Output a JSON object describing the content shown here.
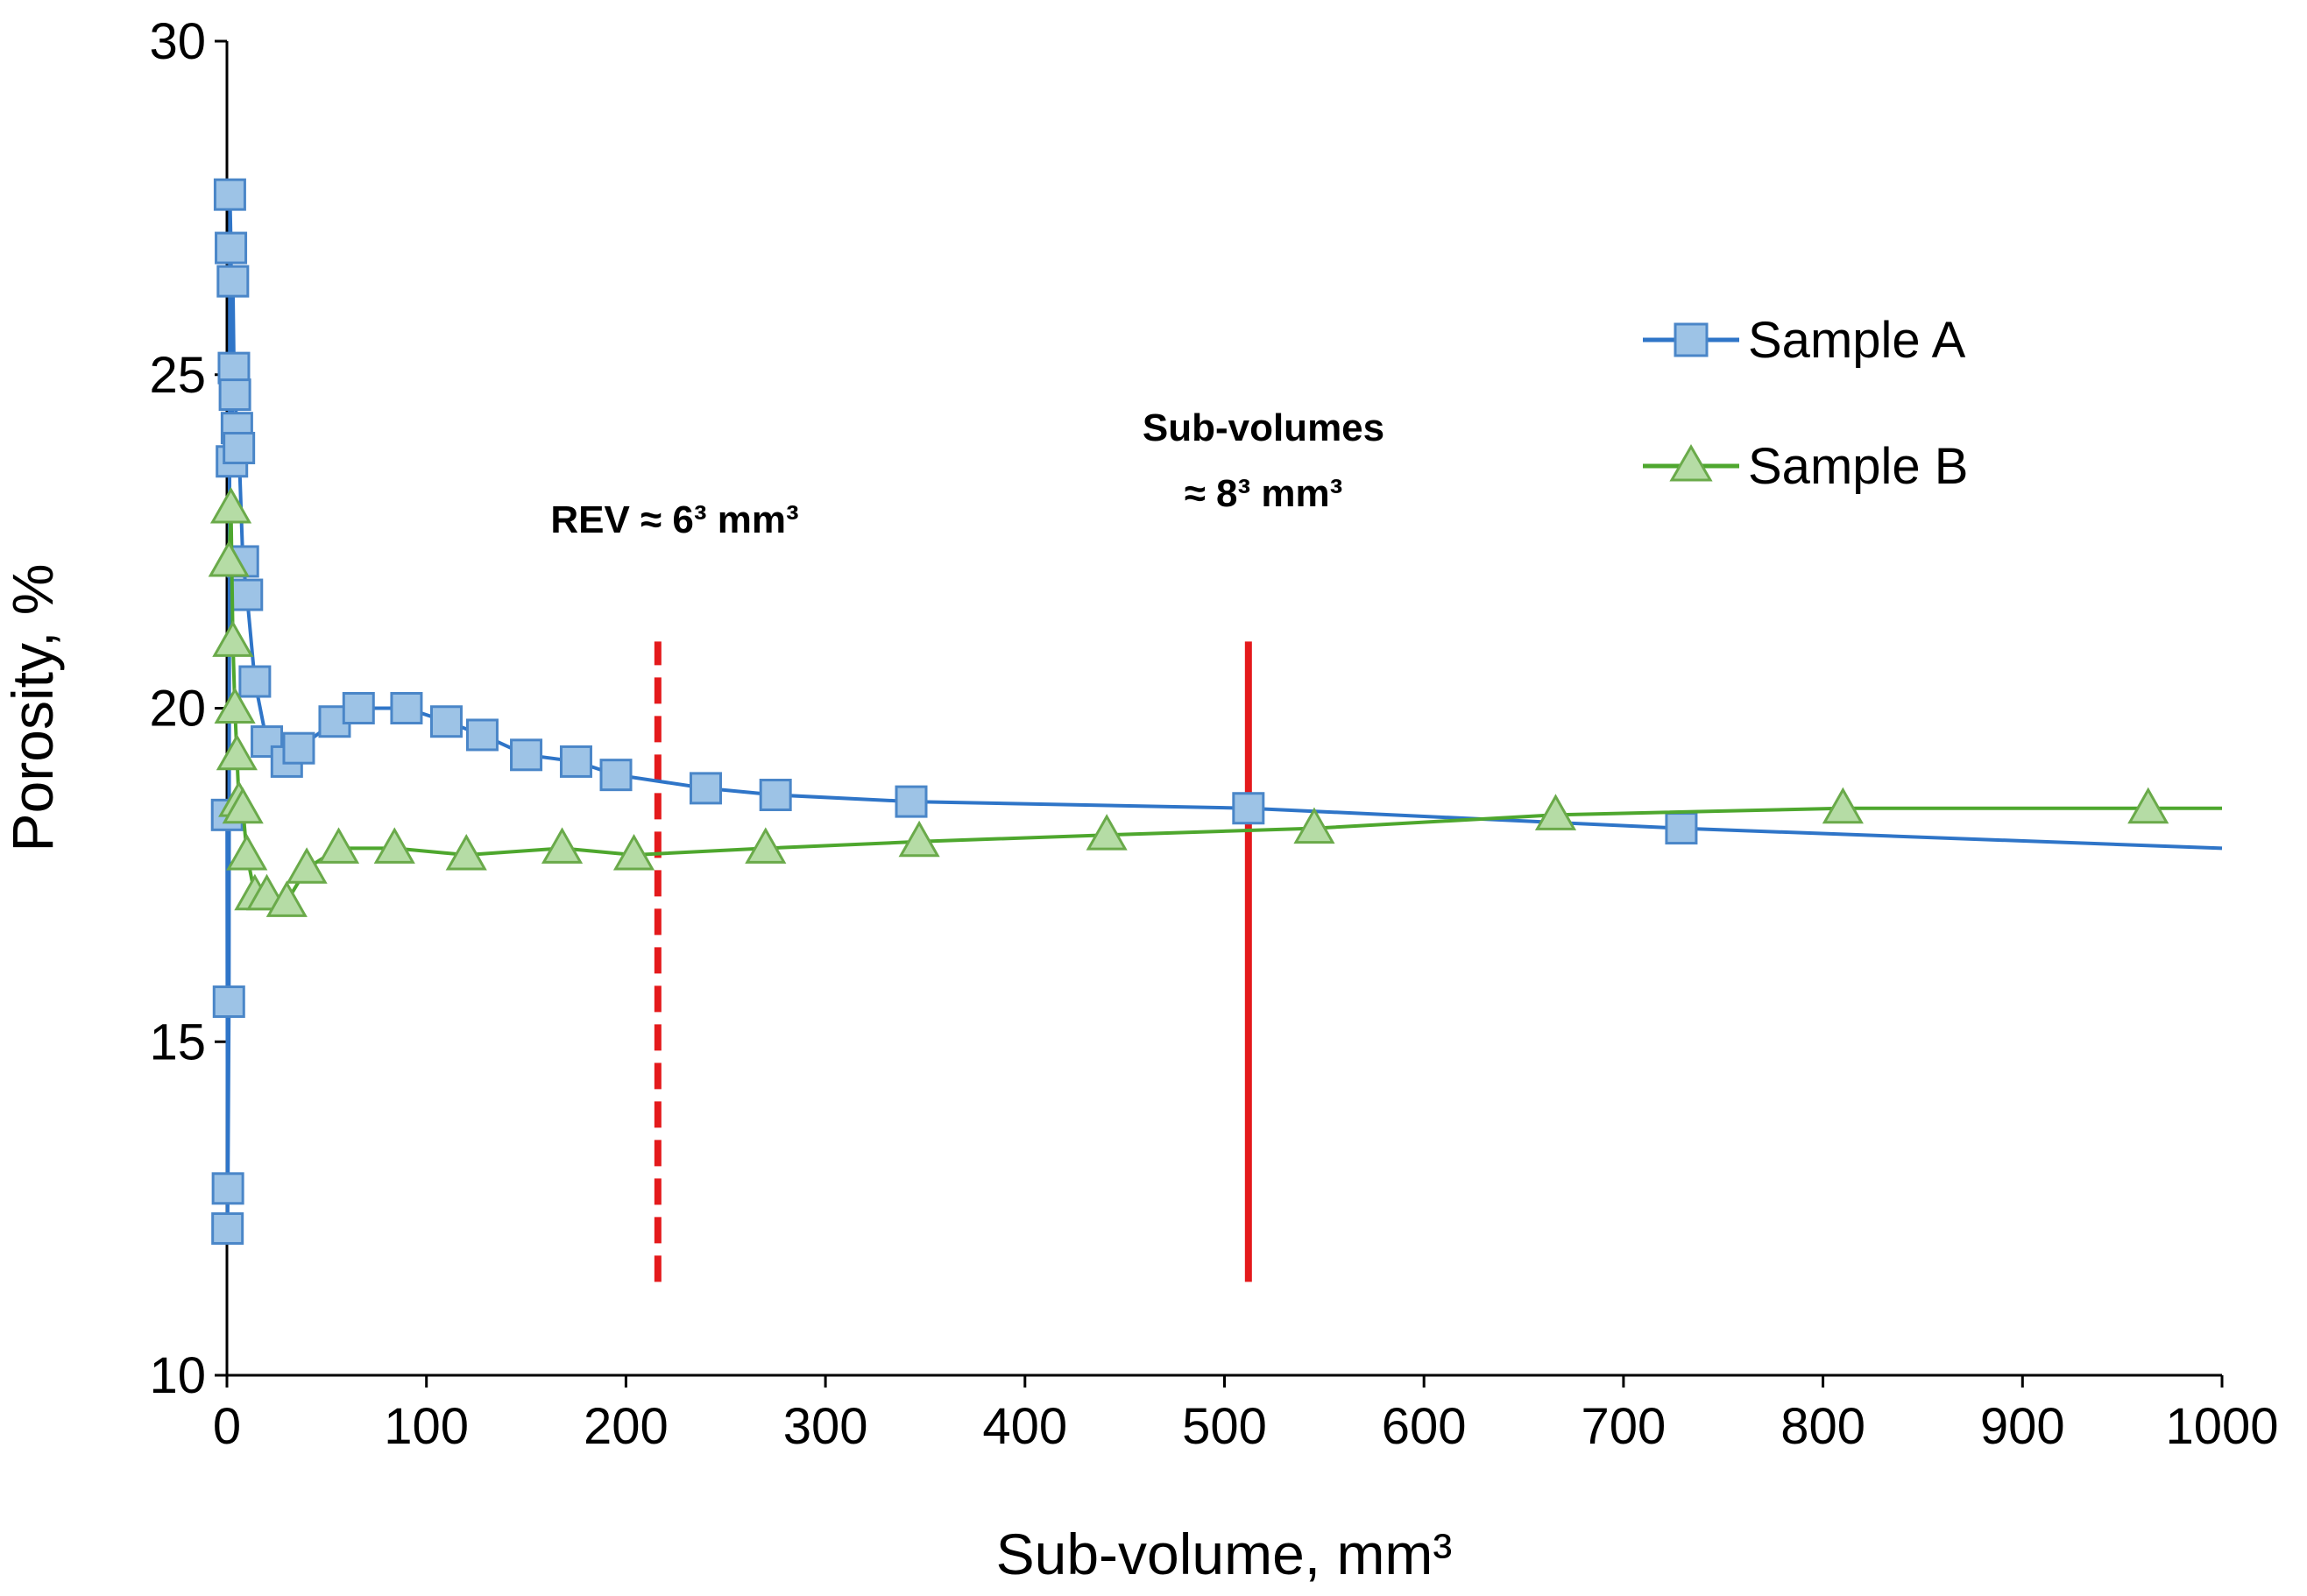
{
  "chart_data": {
    "type": "line",
    "xlabel": "Sub-volume, mm³",
    "ylabel": "Porosity, %",
    "xlim": [
      0,
      1000
    ],
    "ylim": [
      10,
      30
    ],
    "xticks": [
      0,
      100,
      200,
      300,
      400,
      500,
      600,
      700,
      800,
      900,
      1000
    ],
    "yticks": [
      10,
      15,
      20,
      25,
      30
    ],
    "grid": false,
    "legend_position": "top-right",
    "series": [
      {
        "name": "Sample A",
        "color": "#2f75c8",
        "marker": "square",
        "marker_fill": "#9dc3e6",
        "marker_stroke": "#4a86c8",
        "x": [
          0.1,
          0.3,
          0.5,
          1.0,
          1.5,
          2.0,
          2.5,
          3.0,
          3.5,
          4.0,
          5.0,
          6.0,
          8.0,
          10.0,
          14.0,
          20.0,
          30.0,
          36.0,
          54.0,
          66.0,
          90.0,
          110.0,
          128.0,
          150.0,
          175.0,
          195.0,
          240.0,
          275.0,
          343.0,
          512.0,
          729.0,
          1000.0
        ],
        "y": [
          18.4,
          12.2,
          12.8,
          15.6,
          27.7,
          26.9,
          23.7,
          26.4,
          25.1,
          24.7,
          24.2,
          23.9,
          22.2,
          21.7,
          20.4,
          19.5,
          19.2,
          19.4,
          19.8,
          20.0,
          20.0,
          19.8,
          19.6,
          19.3,
          19.2,
          19.0,
          18.8,
          18.7,
          18.6,
          18.5,
          18.2,
          17.9
        ]
      },
      {
        "name": "Sample B",
        "color": "#4ea72e",
        "marker": "triangle",
        "marker_fill": "#b5dca5",
        "marker_stroke": "#6aaa4a",
        "x": [
          1.0,
          2.0,
          3.0,
          4.0,
          5.0,
          6.0,
          8.0,
          10.0,
          14.0,
          20.0,
          30.0,
          40.0,
          56.0,
          84.0,
          120.0,
          168.0,
          204.0,
          270.0,
          347.0,
          441.0,
          545.0,
          666.0,
          810.0,
          963.0,
          1000.0
        ],
        "y": [
          22.2,
          23.0,
          21.0,
          20.0,
          19.3,
          18.6,
          18.5,
          17.8,
          17.2,
          17.2,
          17.1,
          17.6,
          17.9,
          17.9,
          17.8,
          17.9,
          17.8,
          17.9,
          18.0,
          18.1,
          18.2,
          18.4,
          18.5,
          18.5,
          18.5
        ]
      }
    ],
    "reference_lines": [
      {
        "x": 216,
        "y_from": 11.4,
        "y_to": 21.0,
        "style": "dashed",
        "color": "#e41a1c"
      },
      {
        "x": 512,
        "y_from": 11.4,
        "y_to": 21.0,
        "style": "solid",
        "color": "#e41a1c"
      }
    ],
    "annotations": [
      {
        "lines": [
          "REV ≈ 6³ mm³"
        ]
      },
      {
        "lines": [
          "Sub-volumes",
          "≈ 8³ mm³"
        ]
      }
    ]
  }
}
